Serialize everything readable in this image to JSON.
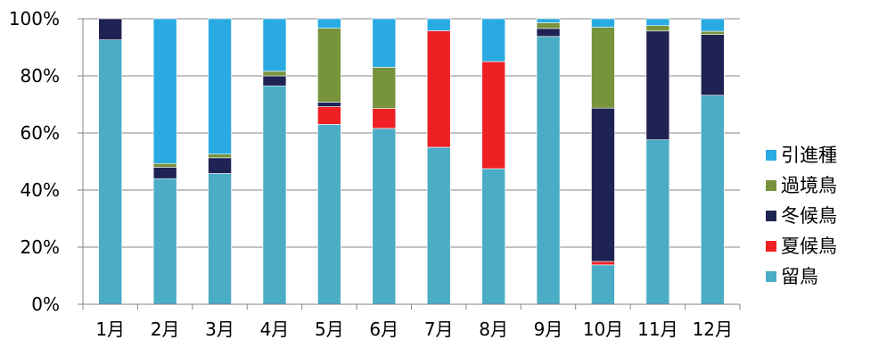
{
  "chart_data": {
    "type": "bar",
    "stacked": true,
    "categories": [
      "1月",
      "2月",
      "3月",
      "4月",
      "5月",
      "6月",
      "7月",
      "8月",
      "9月",
      "10月",
      "11月",
      "12月"
    ],
    "ylim": [
      0,
      100
    ],
    "yticks": [
      "0%",
      "20%",
      "40%",
      "60%",
      "80%",
      "100%"
    ],
    "grid": true,
    "legend_position": "right",
    "series": [
      {
        "name": "留鳥",
        "color": "#4bacc6",
        "values": [
          92.6,
          44.0,
          45.8,
          76.5,
          63.0,
          61.6,
          55.0,
          47.5,
          93.8,
          13.8,
          57.6,
          73.2
        ]
      },
      {
        "name": "夏候鳥",
        "color": "#ee2024",
        "values": [
          0,
          0,
          0,
          0,
          6.2,
          7.0,
          40.8,
          37.5,
          0,
          1.2,
          0,
          0
        ]
      },
      {
        "name": "冬候鳥",
        "color": "#1f2353",
        "values": [
          7.4,
          4.0,
          5.5,
          3.5,
          1.6,
          0,
          0,
          0,
          2.8,
          53.7,
          38.1,
          21.3
        ]
      },
      {
        "name": "過境鳥",
        "color": "#77933c",
        "values": [
          0,
          1.3,
          1.3,
          1.6,
          25.9,
          14.4,
          0,
          0,
          2.0,
          28.3,
          1.9,
          1.1
        ]
      },
      {
        "name": "引進種",
        "color": "#29abe2",
        "values": [
          0,
          50.7,
          47.4,
          18.4,
          3.3,
          17.0,
          4.2,
          15.0,
          1.4,
          3.0,
          2.4,
          4.4
        ]
      }
    ],
    "legend_order": [
      "引進種",
      "過境鳥",
      "冬候鳥",
      "夏候鳥",
      "留鳥"
    ]
  }
}
